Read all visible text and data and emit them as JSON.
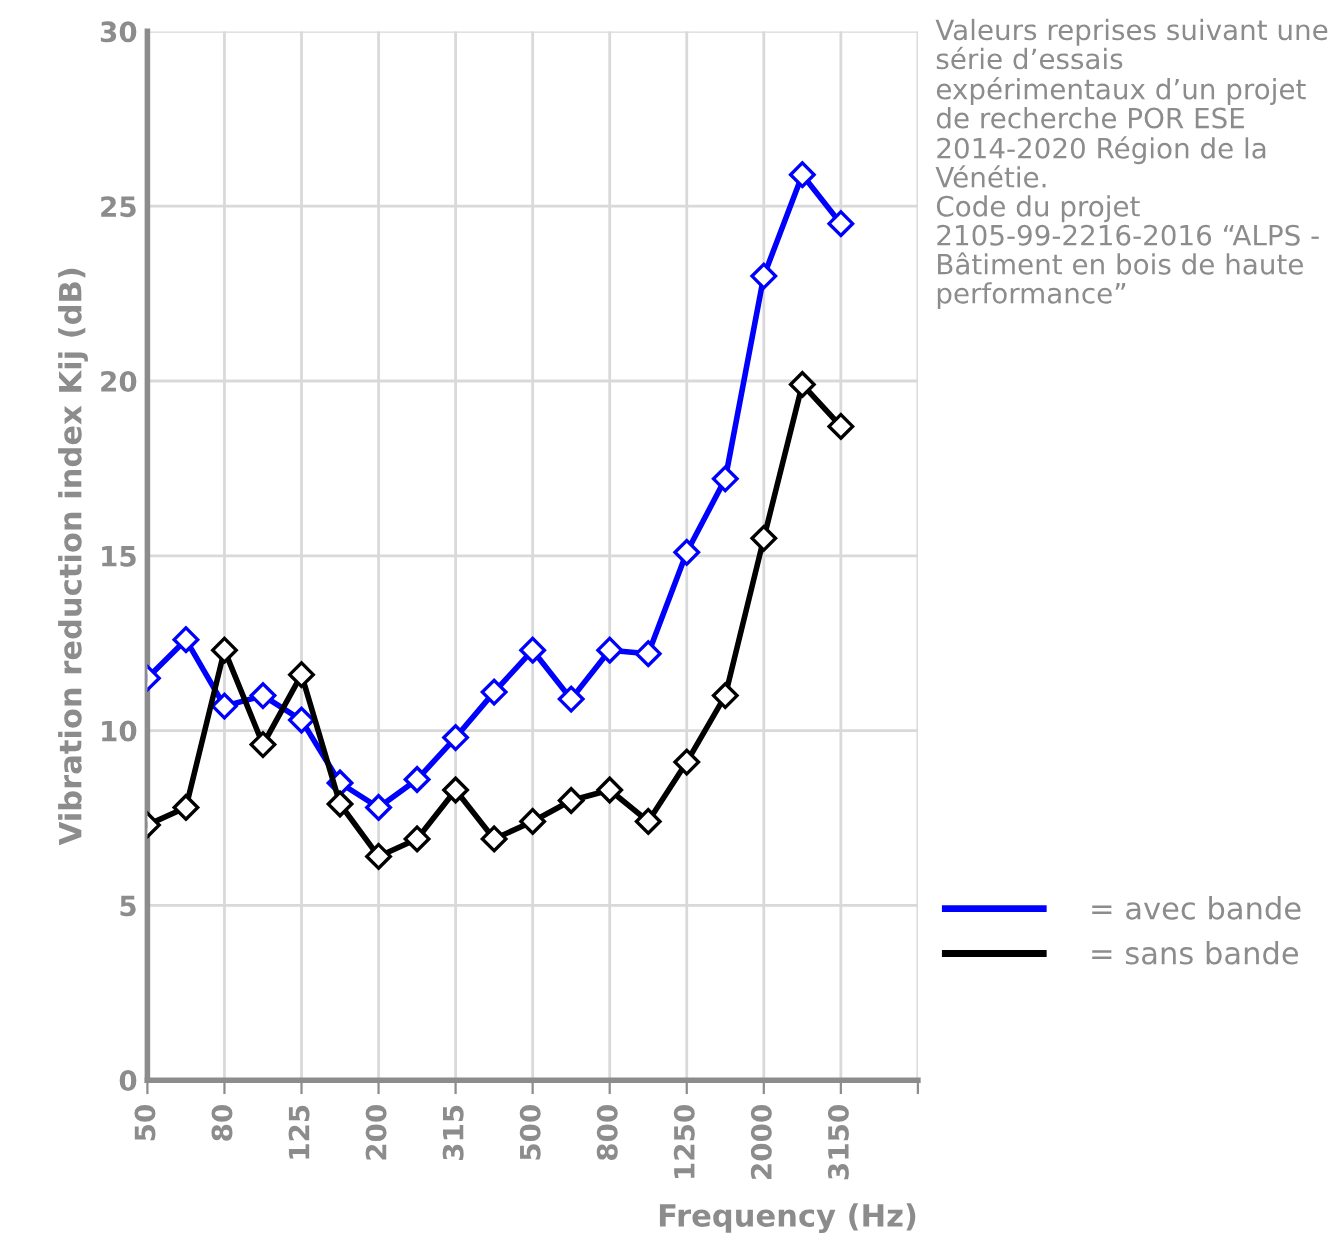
{
  "chart_data": {
    "type": "line",
    "ylabel": "Vibration reduction index Kij (dB)",
    "xlabel": "Frequency (Hz)",
    "categories": [
      "50",
      null,
      "80",
      null,
      "125",
      null,
      "200",
      null,
      "315",
      null,
      "500",
      null,
      "800",
      null,
      "1250",
      null,
      "2000",
      null,
      "3150",
      null,
      null
    ],
    "series": [
      {
        "name": "= avec bande",
        "color": "#0000ff",
        "values": [
          11.5,
          12.6,
          10.7,
          11.0,
          10.3,
          8.5,
          7.8,
          8.6,
          9.8,
          11.1,
          12.3,
          10.9,
          12.3,
          12.2,
          15.1,
          17.2,
          23.0,
          25.9,
          24.5,
          null,
          null
        ]
      },
      {
        "name": "= sans bande",
        "color": "#000000",
        "values": [
          7.3,
          7.8,
          12.3,
          9.6,
          11.6,
          7.9,
          6.4,
          6.9,
          8.3,
          6.9,
          7.4,
          8.0,
          8.3,
          7.4,
          9.1,
          11.0,
          15.5,
          19.9,
          18.7,
          null,
          null
        ]
      }
    ],
    "ylim": [
      0,
      30
    ],
    "yticks": [
      0,
      5,
      10,
      15,
      20,
      25,
      30
    ],
    "grid": true,
    "legend": "right",
    "marker": "diamond",
    "line_style": "solid",
    "annotations": [
      "Valeurs reprises suivant une série d’essais expérimentaux d’un projet de recherche POR ESE 2014-2020 Région de la Vénétie.\nCode du projet 2105-99-2216-2016 “ALPS - Bâtiment en bois de haute performance”"
    ]
  }
}
